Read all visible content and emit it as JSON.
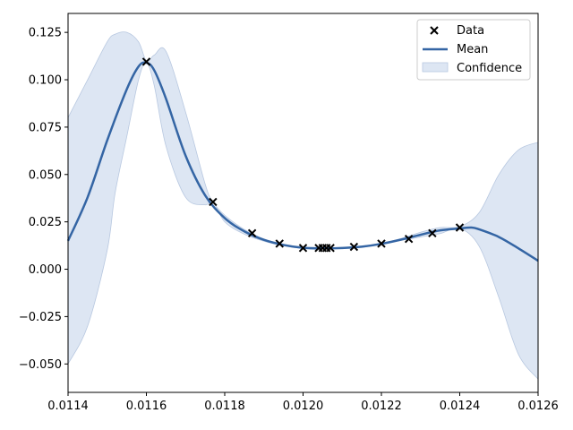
{
  "chart_data": {
    "type": "line",
    "title": "",
    "xlabel": "",
    "ylabel": "",
    "xlim": [
      0.0114,
      0.0126
    ],
    "ylim": [
      -0.065,
      0.135
    ],
    "grid": false,
    "legend_position": "top-right",
    "x_ticks": [
      "0.0114",
      "0.0116",
      "0.0118",
      "0.0120",
      "0.0122",
      "0.0124",
      "0.0126"
    ],
    "x_tick_values": [
      0.0114,
      0.0116,
      0.0118,
      0.012,
      0.0122,
      0.0124,
      0.0126
    ],
    "y_ticks": [
      "0.125",
      "0.100",
      "0.075",
      "0.050",
      "0.025",
      "0.000",
      "−0.025",
      "−0.050"
    ],
    "y_tick_values": [
      0.125,
      0.1,
      0.075,
      0.05,
      0.025,
      0.0,
      -0.025,
      -0.05
    ],
    "legend": {
      "data": "Data",
      "mean": "Mean",
      "confidence": "Confidence"
    },
    "colors": {
      "mean": "#3465a4",
      "confidence_fill": "#dde6f3",
      "confidence_edge": "#b8c8e0",
      "points": "#000000"
    },
    "series": [
      {
        "name": "Data",
        "kind": "scatter",
        "x": [
          0.0116,
          0.01177,
          0.01187,
          0.01194,
          0.012,
          0.01204,
          0.01205,
          0.01206,
          0.01207,
          0.01213,
          0.0122,
          0.01227,
          0.01233,
          0.0124
        ],
        "y": [
          0.1095,
          0.0355,
          0.019,
          0.0135,
          0.0112,
          0.0112,
          0.0112,
          0.0112,
          0.0112,
          0.0118,
          0.0135,
          0.016,
          0.019,
          0.022
        ]
      },
      {
        "name": "Mean",
        "kind": "line",
        "x": [
          0.0114,
          0.01145,
          0.0115,
          0.01155,
          0.01158,
          0.0116,
          0.01162,
          0.01165,
          0.0117,
          0.01175,
          0.0118,
          0.01185,
          0.0119,
          0.01195,
          0.012,
          0.01205,
          0.0121,
          0.01215,
          0.0122,
          0.01225,
          0.0123,
          0.01235,
          0.0124,
          0.01243,
          0.01245,
          0.0125,
          0.01255,
          0.0126
        ],
        "y": [
          0.015,
          0.038,
          0.068,
          0.095,
          0.107,
          0.109,
          0.105,
          0.09,
          0.06,
          0.039,
          0.027,
          0.02,
          0.0155,
          0.0128,
          0.0113,
          0.011,
          0.0112,
          0.0119,
          0.0134,
          0.0156,
          0.0182,
          0.0205,
          0.0215,
          0.022,
          0.021,
          0.017,
          0.011,
          0.0045
        ]
      },
      {
        "name": "Confidence",
        "kind": "band",
        "x": [
          0.0114,
          0.01145,
          0.0115,
          0.01152,
          0.01155,
          0.01158,
          0.0116,
          0.01162,
          0.01165,
          0.0117,
          0.01175,
          0.01177,
          0.0118,
          0.01185,
          0.0119,
          0.01195,
          0.012,
          0.01205,
          0.0121,
          0.01215,
          0.0122,
          0.01225,
          0.0123,
          0.01235,
          0.0124,
          0.01245,
          0.0125,
          0.01255,
          0.0126
        ],
        "upper": [
          0.08,
          0.1,
          0.12,
          0.124,
          0.125,
          0.12,
          0.11,
          0.113,
          0.115,
          0.083,
          0.045,
          0.0355,
          0.0285,
          0.021,
          0.016,
          0.0132,
          0.0115,
          0.0112,
          0.0115,
          0.0122,
          0.0137,
          0.0162,
          0.0195,
          0.022,
          0.0225,
          0.03,
          0.05,
          0.063,
          0.067
        ],
        "lower": [
          -0.05,
          -0.03,
          0.01,
          0.04,
          0.07,
          0.1,
          0.109,
          0.097,
          0.065,
          0.038,
          0.034,
          0.0355,
          0.025,
          0.0185,
          0.0148,
          0.0124,
          0.011,
          0.0108,
          0.0109,
          0.0116,
          0.0131,
          0.0152,
          0.017,
          0.0188,
          0.0215,
          0.012,
          -0.015,
          -0.045,
          -0.058
        ]
      }
    ]
  }
}
